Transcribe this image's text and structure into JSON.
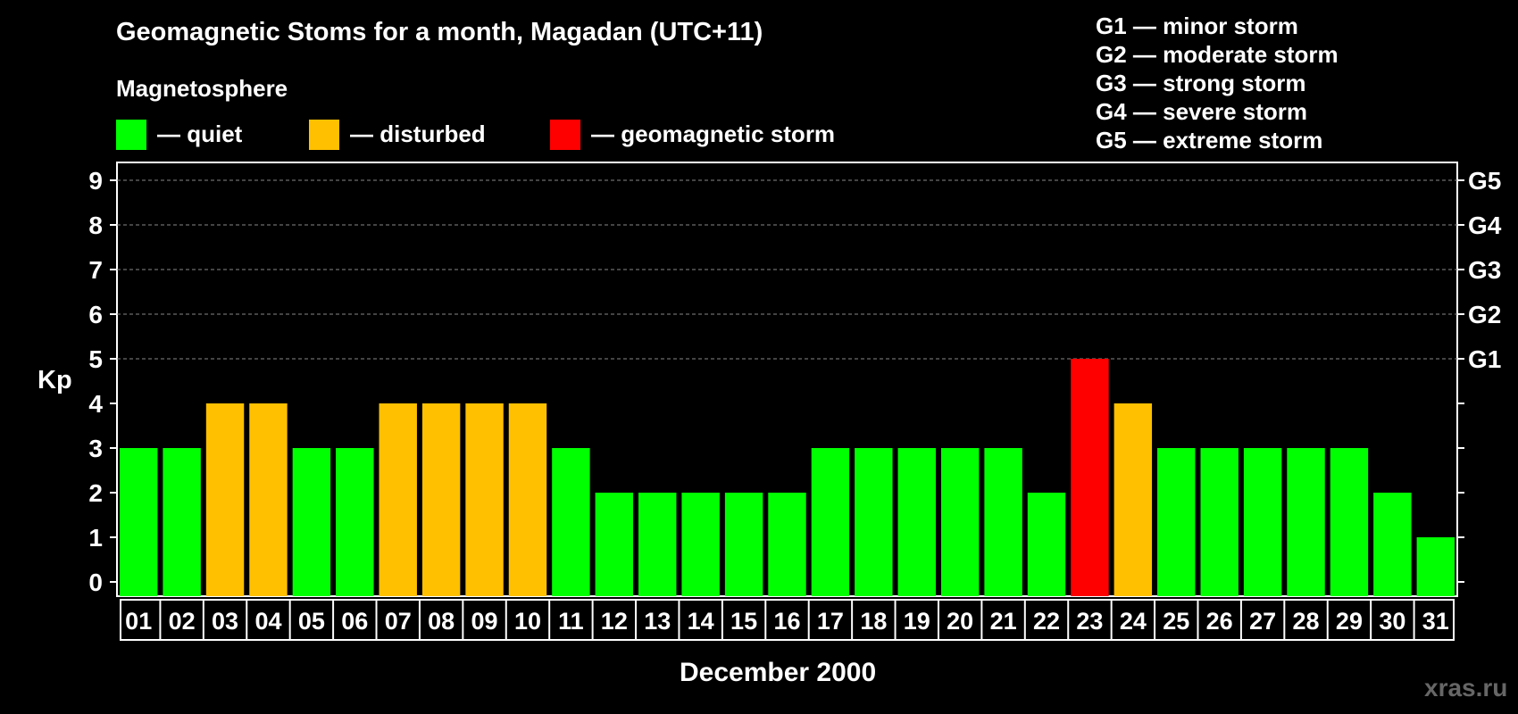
{
  "header": {
    "title": "Geomagnetic Stoms for a month, Magadan (UTC+11)",
    "subtitle": "Magnetosphere",
    "watermark": "xras.ru"
  },
  "legend": [
    {
      "label": "— quiet",
      "color": "#00ff00"
    },
    {
      "label": "— disturbed",
      "color": "#ffc000"
    },
    {
      "label": "— geomagnetic storm",
      "color": "#ff0000"
    }
  ],
  "storm_levels": [
    "G1 — minor storm",
    "G2 — moderate storm",
    "G3 — strong storm",
    "G4 — severe storm",
    "G5 — extreme storm"
  ],
  "chart_data": {
    "type": "bar",
    "title": "Geomagnetic Stoms for a month, Magadan (UTC+11)",
    "xlabel": "December 2000",
    "ylabel": "Kp",
    "ylim": [
      0,
      9
    ],
    "yticks": [
      "0",
      "1",
      "2",
      "3",
      "4",
      "5",
      "6",
      "7",
      "8",
      "9"
    ],
    "right_ticks": [
      {
        "kp": 5,
        "label": "G1"
      },
      {
        "kp": 6,
        "label": "G2"
      },
      {
        "kp": 7,
        "label": "G3"
      },
      {
        "kp": 8,
        "label": "G4"
      },
      {
        "kp": 9,
        "label": "G5"
      }
    ],
    "grid": "dashed horizontal at Kp 5-9",
    "categories": [
      "01",
      "02",
      "03",
      "04",
      "05",
      "06",
      "07",
      "08",
      "09",
      "10",
      "11",
      "12",
      "13",
      "14",
      "15",
      "16",
      "17",
      "18",
      "19",
      "20",
      "21",
      "22",
      "23",
      "24",
      "25",
      "26",
      "27",
      "28",
      "29",
      "30",
      "31"
    ],
    "values": [
      3,
      3,
      4,
      4,
      3,
      3,
      4,
      4,
      4,
      4,
      3,
      2,
      2,
      2,
      2,
      2,
      3,
      3,
      3,
      3,
      3,
      2,
      5,
      4,
      3,
      3,
      3,
      3,
      3,
      2,
      1
    ],
    "status": [
      "quiet",
      "quiet",
      "disturbed",
      "disturbed",
      "quiet",
      "quiet",
      "disturbed",
      "disturbed",
      "disturbed",
      "disturbed",
      "quiet",
      "quiet",
      "quiet",
      "quiet",
      "quiet",
      "quiet",
      "quiet",
      "quiet",
      "quiet",
      "quiet",
      "quiet",
      "quiet",
      "storm",
      "disturbed",
      "quiet",
      "quiet",
      "quiet",
      "quiet",
      "quiet",
      "quiet",
      "quiet"
    ],
    "colors": {
      "quiet": "#00ff00",
      "disturbed": "#ffc000",
      "storm": "#ff0000"
    }
  }
}
